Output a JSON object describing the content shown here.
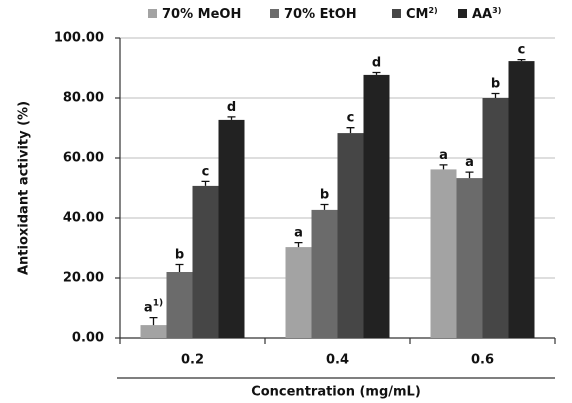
{
  "chart_data": {
    "type": "bar",
    "x_label": "Concentration (mg/mL)",
    "y_label": "Antioxidant activity (%)",
    "categories": [
      "0.2",
      "0.4",
      "0.6"
    ],
    "series": [
      {
        "name": "70% MeOH",
        "color": "#a3a3a3",
        "values": [
          4.3,
          30.3,
          56.2
        ],
        "errors": [
          2.5,
          1.5,
          1.5
        ],
        "letters": [
          "a",
          "a",
          "a"
        ],
        "letter_notes": [
          "1)",
          null,
          null
        ]
      },
      {
        "name": "70% EtOH",
        "color": "#6b6b6b",
        "values": [
          22,
          42.7,
          53.3
        ],
        "errors": [
          2.5,
          1.8,
          2
        ],
        "letters": [
          "b",
          "b",
          "a"
        ]
      },
      {
        "name": "CM",
        "name_note": "2)",
        "color": "#464646",
        "values": [
          50.7,
          68.3,
          80
        ],
        "errors": [
          1.5,
          1.8,
          1.5
        ],
        "letters": [
          "c",
          "c",
          "b"
        ]
      },
      {
        "name": "AA",
        "name_note": "3)",
        "color": "#222222",
        "values": [
          72.7,
          87.7,
          92.3
        ],
        "errors": [
          1,
          0.8,
          0.5
        ],
        "letters": [
          "d",
          "d",
          "c"
        ]
      }
    ],
    "ylim": [
      0,
      100
    ],
    "yticks": [
      {
        "value": 0,
        "label": "0.00"
      },
      {
        "value": 20,
        "label": "20.00"
      },
      {
        "value": 40,
        "label": "40.00"
      },
      {
        "value": 60,
        "label": "60.00"
      },
      {
        "value": 80,
        "label": "80.00"
      },
      {
        "value": 100,
        "label": "100.00"
      }
    ],
    "grid": true
  }
}
